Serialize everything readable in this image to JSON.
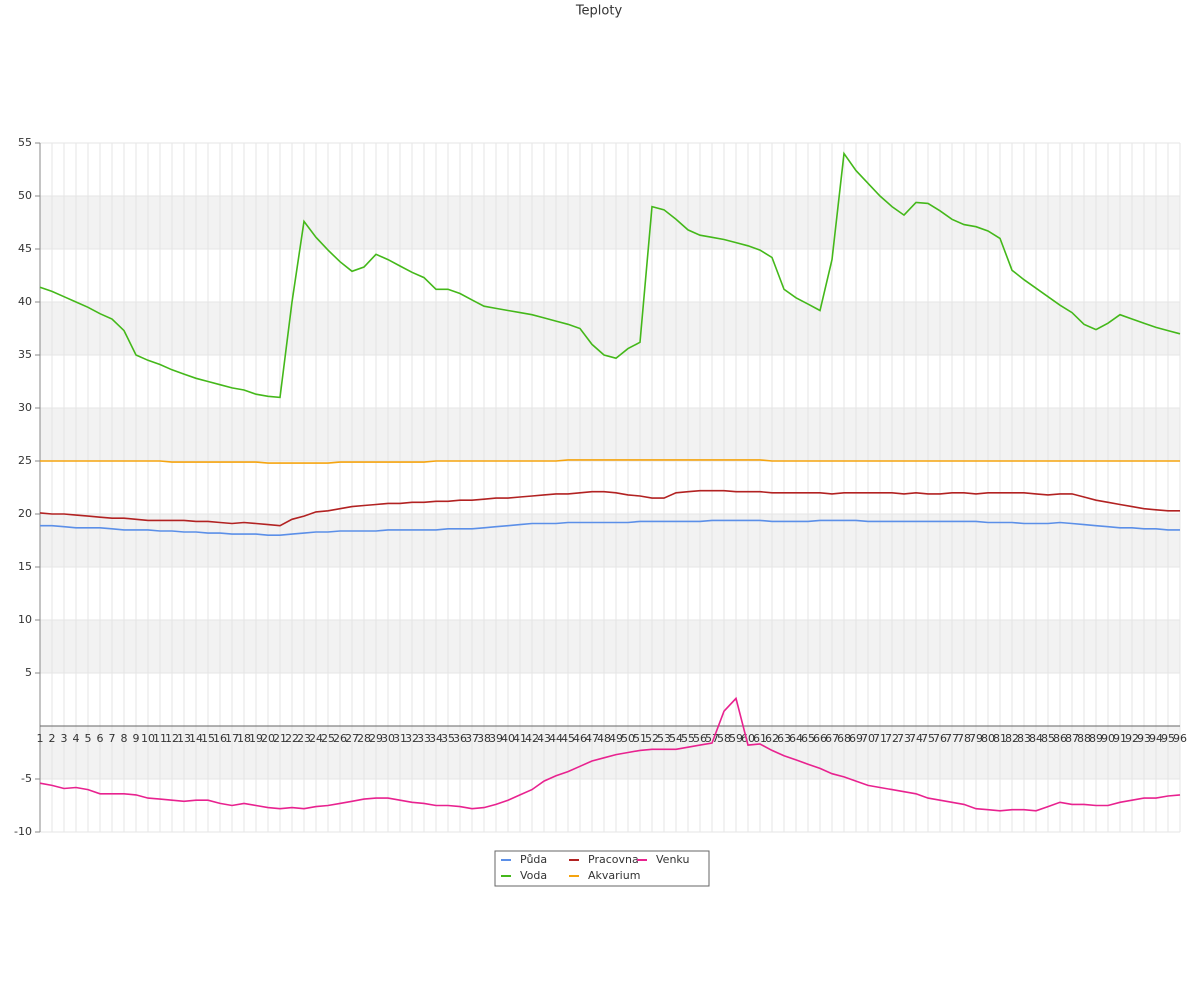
{
  "chart_data": {
    "type": "line",
    "title": "Teploty",
    "categories": [
      "1",
      "2",
      "3",
      "4",
      "5",
      "6",
      "7",
      "8",
      "9",
      "10",
      "11",
      "12",
      "13",
      "14",
      "15",
      "16",
      "17",
      "18",
      "19",
      "20",
      "21",
      "22",
      "23",
      "24",
      "25",
      "26",
      "27",
      "28",
      "29",
      "30",
      "31",
      "32",
      "33",
      "34",
      "35",
      "36",
      "37",
      "38",
      "39",
      "40",
      "41",
      "42",
      "43",
      "44",
      "45",
      "46",
      "47",
      "48",
      "49",
      "50",
      "51",
      "52",
      "53",
      "54",
      "55",
      "56",
      "57",
      "58",
      "59",
      "60",
      "61",
      "62",
      "63",
      "64",
      "65",
      "66",
      "67",
      "68",
      "69",
      "70",
      "71",
      "72",
      "73",
      "74",
      "75",
      "76",
      "77",
      "78",
      "79",
      "80",
      "81",
      "82",
      "83",
      "84",
      "85",
      "86",
      "87",
      "88",
      "89",
      "90",
      "91",
      "92",
      "93",
      "94",
      "95",
      "96"
    ],
    "series": [
      {
        "name": "Půda",
        "color": "#5b8fe8",
        "values": [
          18.9,
          18.9,
          18.8,
          18.7,
          18.7,
          18.7,
          18.6,
          18.5,
          18.5,
          18.5,
          18.4,
          18.4,
          18.3,
          18.3,
          18.2,
          18.2,
          18.1,
          18.1,
          18.1,
          18.0,
          18.0,
          18.1,
          18.2,
          18.3,
          18.3,
          18.4,
          18.4,
          18.4,
          18.4,
          18.5,
          18.5,
          18.5,
          18.5,
          18.5,
          18.6,
          18.6,
          18.6,
          18.7,
          18.8,
          18.9,
          19.0,
          19.1,
          19.1,
          19.1,
          19.2,
          19.2,
          19.2,
          19.2,
          19.2,
          19.2,
          19.3,
          19.3,
          19.3,
          19.3,
          19.3,
          19.3,
          19.4,
          19.4,
          19.4,
          19.4,
          19.4,
          19.3,
          19.3,
          19.3,
          19.3,
          19.4,
          19.4,
          19.4,
          19.4,
          19.3,
          19.3,
          19.3,
          19.3,
          19.3,
          19.3,
          19.3,
          19.3,
          19.3,
          19.3,
          19.2,
          19.2,
          19.2,
          19.1,
          19.1,
          19.1,
          19.2,
          19.1,
          19.0,
          18.9,
          18.8,
          18.7,
          18.7,
          18.6,
          18.6,
          18.5,
          18.5
        ]
      },
      {
        "name": "Voda",
        "color": "#44b81a",
        "values": [
          41.4,
          41.0,
          40.5,
          40.0,
          39.5,
          38.9,
          38.4,
          37.3,
          35.0,
          34.5,
          34.1,
          33.6,
          33.2,
          32.8,
          32.5,
          32.2,
          31.9,
          31.7,
          31.3,
          31.1,
          31.0,
          40.0,
          47.6,
          46.1,
          44.9,
          43.8,
          42.9,
          43.3,
          44.5,
          44.0,
          43.4,
          42.8,
          42.3,
          41.2,
          41.2,
          40.8,
          40.2,
          39.6,
          39.4,
          39.2,
          39.0,
          38.8,
          38.5,
          38.2,
          37.9,
          37.5,
          36.0,
          35.0,
          34.7,
          35.6,
          36.2,
          49.0,
          48.7,
          47.8,
          46.8,
          46.3,
          46.1,
          45.9,
          45.6,
          45.3,
          44.9,
          44.2,
          41.2,
          40.4,
          39.8,
          39.2,
          44.0,
          54.0,
          52.4,
          51.2,
          50.0,
          49.0,
          48.2,
          49.4,
          49.3,
          48.6,
          47.8,
          47.3,
          47.1,
          46.7,
          46.0,
          43.0,
          42.1,
          41.3,
          40.5,
          39.7,
          39.0,
          37.9,
          37.4,
          38.0,
          38.8,
          38.4,
          38.0,
          37.6,
          37.3,
          37.0
        ]
      },
      {
        "name": "Pracovna",
        "color": "#b22222",
        "values": [
          20.1,
          20.0,
          20.0,
          19.9,
          19.8,
          19.7,
          19.6,
          19.6,
          19.5,
          19.4,
          19.4,
          19.4,
          19.4,
          19.3,
          19.3,
          19.2,
          19.1,
          19.2,
          19.1,
          19.0,
          18.9,
          19.5,
          19.8,
          20.2,
          20.3,
          20.5,
          20.7,
          20.8,
          20.9,
          21.0,
          21.0,
          21.1,
          21.1,
          21.2,
          21.2,
          21.3,
          21.3,
          21.4,
          21.5,
          21.5,
          21.6,
          21.7,
          21.8,
          21.9,
          21.9,
          22.0,
          22.1,
          22.1,
          22.0,
          21.8,
          21.7,
          21.5,
          21.5,
          22.0,
          22.1,
          22.2,
          22.2,
          22.2,
          22.1,
          22.1,
          22.1,
          22.0,
          22.0,
          22.0,
          22.0,
          22.0,
          21.9,
          22.0,
          22.0,
          22.0,
          22.0,
          22.0,
          21.9,
          22.0,
          21.9,
          21.9,
          22.0,
          22.0,
          21.9,
          22.0,
          22.0,
          22.0,
          22.0,
          21.9,
          21.8,
          21.9,
          21.9,
          21.6,
          21.3,
          21.1,
          20.9,
          20.7,
          20.5,
          20.4,
          20.3,
          20.3
        ]
      },
      {
        "name": "Akvarium",
        "color": "#f5a40f",
        "values": [
          25.0,
          25.0,
          25.0,
          25.0,
          25.0,
          25.0,
          25.0,
          25.0,
          25.0,
          25.0,
          25.0,
          24.9,
          24.9,
          24.9,
          24.9,
          24.9,
          24.9,
          24.9,
          24.9,
          24.8,
          24.8,
          24.8,
          24.8,
          24.8,
          24.8,
          24.9,
          24.9,
          24.9,
          24.9,
          24.9,
          24.9,
          24.9,
          24.9,
          25.0,
          25.0,
          25.0,
          25.0,
          25.0,
          25.0,
          25.0,
          25.0,
          25.0,
          25.0,
          25.0,
          25.1,
          25.1,
          25.1,
          25.1,
          25.1,
          25.1,
          25.1,
          25.1,
          25.1,
          25.1,
          25.1,
          25.1,
          25.1,
          25.1,
          25.1,
          25.1,
          25.1,
          25.0,
          25.0,
          25.0,
          25.0,
          25.0,
          25.0,
          25.0,
          25.0,
          25.0,
          25.0,
          25.0,
          25.0,
          25.0,
          25.0,
          25.0,
          25.0,
          25.0,
          25.0,
          25.0,
          25.0,
          25.0,
          25.0,
          25.0,
          25.0,
          25.0,
          25.0,
          25.0,
          25.0,
          25.0,
          25.0,
          25.0,
          25.0,
          25.0,
          25.0,
          25.0
        ]
      },
      {
        "name": "Venku",
        "color": "#e8228f",
        "values": [
          -5.4,
          -5.6,
          -5.9,
          -5.8,
          -6.0,
          -6.4,
          -6.4,
          -6.4,
          -6.5,
          -6.8,
          -6.9,
          -7.0,
          -7.1,
          -7.0,
          -7.0,
          -7.3,
          -7.5,
          -7.3,
          -7.5,
          -7.7,
          -7.8,
          -7.7,
          -7.8,
          -7.6,
          -7.5,
          -7.3,
          -7.1,
          -6.9,
          -6.8,
          -6.8,
          -7.0,
          -7.2,
          -7.3,
          -7.5,
          -7.5,
          -7.6,
          -7.8,
          -7.7,
          -7.4,
          -7.0,
          -6.5,
          -6.0,
          -5.2,
          -4.7,
          -4.3,
          -3.8,
          -3.3,
          -3.0,
          -2.7,
          -2.5,
          -2.3,
          -2.2,
          -2.2,
          -2.2,
          -2.0,
          -1.8,
          -1.6,
          1.4,
          2.6,
          -1.8,
          -1.7,
          -2.3,
          -2.8,
          -3.2,
          -3.6,
          -4.0,
          -4.5,
          -4.8,
          -5.2,
          -5.6,
          -5.8,
          -6.0,
          -6.2,
          -6.4,
          -6.8,
          -7.0,
          -7.2,
          -7.4,
          -7.8,
          -7.9,
          -8.0,
          -7.9,
          -7.9,
          -8.0,
          -7.6,
          -7.2,
          -7.4,
          -7.4,
          -7.5,
          -7.5,
          -7.2,
          -7.0,
          -6.8,
          -6.8,
          -6.6,
          -6.5
        ]
      }
    ],
    "ylim": [
      -10,
      55
    ],
    "yticks": [
      -10,
      -5,
      5,
      10,
      15,
      20,
      25,
      30,
      35,
      40,
      45,
      50,
      55
    ],
    "grid": true,
    "legend": "bottom"
  }
}
